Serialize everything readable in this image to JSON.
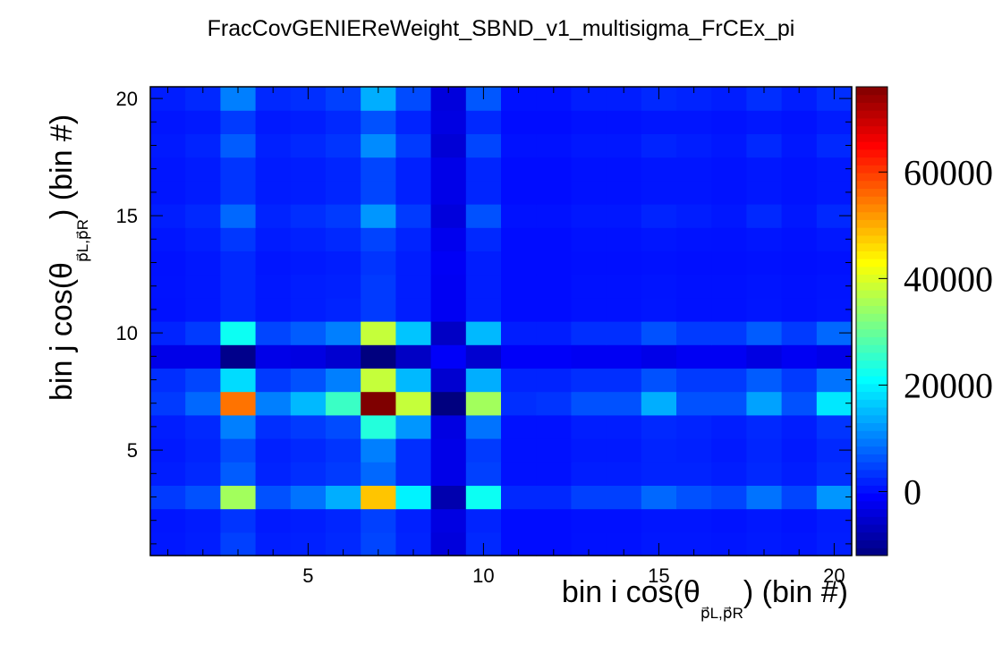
{
  "chart_data": {
    "type": "heatmap",
    "title": "FracCovGENIEReWeight_SBND_v1_multisigma_FrCEx_pi",
    "xlabel": {
      "prefix": "bin i cos(θ",
      "sub": "p⃗L,p⃗R",
      "suffix": ") (bin #)"
    },
    "ylabel": {
      "prefix": "bin j cos(θ",
      "sub": "p⃗L,p⃗R",
      "suffix": ") (bin #)"
    },
    "xlim": [
      0.5,
      20.5
    ],
    "ylim": [
      0.5,
      20.5
    ],
    "xticks": [
      5,
      10,
      15,
      20
    ],
    "yticks": [
      5,
      10,
      15,
      20
    ],
    "zlim": [
      -12000,
      76000
    ],
    "colorbar_ticks": [
      0,
      20000,
      40000,
      60000
    ],
    "colormap": [
      "#00007f",
      "#0000ff",
      "#007fff",
      "#00ffff",
      "#7fff7f",
      "#ffff00",
      "#ff7f00",
      "#ff0000",
      "#7f0000"
    ],
    "bins": [
      1,
      2,
      3,
      4,
      5,
      6,
      7,
      8,
      9,
      10,
      11,
      12,
      13,
      14,
      15,
      16,
      17,
      18,
      19,
      20
    ],
    "z": [
      [
        1000,
        1500,
        4500,
        1500,
        1800,
        2500,
        5000,
        2000,
        -4000,
        2500,
        0,
        0,
        500,
        500,
        1000,
        1000,
        800,
        1200,
        800,
        1500
      ],
      [
        800,
        1300,
        3500,
        1200,
        1500,
        2200,
        4500,
        1800,
        -3500,
        2000,
        0,
        0,
        400,
        400,
        800,
        800,
        600,
        1000,
        600,
        1300
      ],
      [
        4000,
        6000,
        35000,
        6000,
        9000,
        14000,
        48000,
        20000,
        -8000,
        22000,
        2500,
        2500,
        4500,
        4500,
        8000,
        6000,
        5000,
        9000,
        5000,
        12000
      ],
      [
        1500,
        2500,
        7000,
        2000,
        3000,
        4000,
        8000,
        3000,
        -3000,
        4500,
        500,
        500,
        1500,
        1500,
        2000,
        2000,
        1500,
        2500,
        1500,
        3000
      ],
      [
        1200,
        2000,
        5500,
        1800,
        2500,
        3500,
        10000,
        3000,
        -3000,
        4000,
        500,
        500,
        1200,
        1200,
        2000,
        1800,
        1200,
        2200,
        1200,
        2500
      ],
      [
        1500,
        2500,
        10000,
        3000,
        4000,
        5500,
        24000,
        12000,
        -3500,
        9000,
        500,
        500,
        1500,
        1500,
        2500,
        2000,
        1500,
        2500,
        1500,
        3500
      ],
      [
        4000,
        8000,
        55000,
        10000,
        15000,
        26000,
        76000,
        38000,
        -12000,
        35000,
        3000,
        3500,
        6000,
        6000,
        14000,
        6000,
        6000,
        13000,
        6000,
        19000
      ],
      [
        3000,
        5000,
        18000,
        4000,
        6000,
        10000,
        38000,
        15000,
        -5000,
        14000,
        2000,
        2000,
        3000,
        3000,
        6000,
        4000,
        4000,
        7000,
        4000,
        9000
      ],
      [
        -3000,
        -3000,
        -11000,
        -3000,
        -3500,
        -5000,
        -12000,
        -6000,
        -1500,
        -5000,
        -1500,
        -1500,
        -2000,
        -2000,
        -3000,
        -2000,
        -2000,
        -3500,
        -2000,
        -3000
      ],
      [
        2000,
        4000,
        22000,
        5000,
        7000,
        10000,
        38000,
        16000,
        -6000,
        15000,
        1500,
        1500,
        3000,
        3000,
        6000,
        4000,
        4000,
        7000,
        4000,
        8000
      ],
      [
        500,
        1000,
        2500,
        1000,
        1500,
        2000,
        4000,
        1500,
        -2000,
        1500,
        0,
        0,
        500,
        500,
        800,
        500,
        500,
        800,
        500,
        800
      ],
      [
        600,
        1000,
        2500,
        1000,
        1500,
        1800,
        4000,
        1500,
        -2000,
        1500,
        0,
        0,
        500,
        500,
        700,
        500,
        500,
        700,
        500,
        700
      ],
      [
        500,
        1000,
        2500,
        800,
        1200,
        1500,
        3500,
        1500,
        -1800,
        1500,
        0,
        0,
        300,
        300,
        500,
        300,
        300,
        500,
        300,
        500
      ],
      [
        800,
        1500,
        3800,
        1300,
        1800,
        2500,
        4800,
        2000,
        -2500,
        2500,
        0,
        0,
        500,
        500,
        800,
        600,
        500,
        800,
        500,
        1000
      ],
      [
        1500,
        2500,
        8000,
        2000,
        3000,
        4000,
        12000,
        4000,
        -4000,
        6000,
        500,
        500,
        1000,
        1000,
        2000,
        1500,
        1000,
        2500,
        1000,
        2500
      ],
      [
        800,
        1300,
        3500,
        1300,
        1500,
        2200,
        5000,
        1800,
        -3000,
        2200,
        0,
        0,
        500,
        500,
        800,
        800,
        600,
        1000,
        600,
        1000
      ],
      [
        800,
        1300,
        3500,
        1300,
        1500,
        2200,
        5000,
        1800,
        -3000,
        2200,
        0,
        0,
        500,
        500,
        800,
        800,
        600,
        1000,
        600,
        1000
      ],
      [
        1200,
        2000,
        7000,
        1800,
        2500,
        3500,
        11000,
        4000,
        -4500,
        5000,
        500,
        500,
        1000,
        1000,
        2000,
        1500,
        1000,
        2500,
        1000,
        2500
      ],
      [
        800,
        1200,
        4000,
        1200,
        1500,
        2500,
        6000,
        2000,
        -3500,
        2500,
        0,
        0,
        500,
        500,
        800,
        800,
        600,
        1000,
        600,
        1300
      ],
      [
        1500,
        2500,
        10000,
        2500,
        3000,
        4500,
        14000,
        5500,
        -4000,
        6500,
        500,
        500,
        1500,
        1500,
        2500,
        2000,
        1500,
        3000,
        1500,
        3000
      ]
    ]
  }
}
